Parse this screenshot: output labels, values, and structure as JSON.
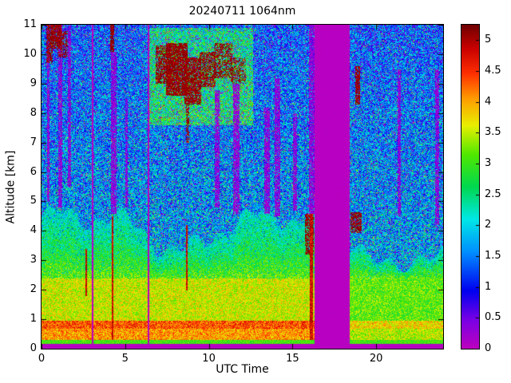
{
  "chart_data": {
    "type": "heatmap",
    "title": "20240711 1064nm",
    "xlabel": "UTC Time",
    "ylabel": "Altitude [km]",
    "x_range": [
      0,
      24
    ],
    "y_range": [
      0,
      11
    ],
    "x_ticks": [
      0,
      5,
      10,
      15,
      20
    ],
    "y_ticks": [
      0,
      1,
      2,
      3,
      4,
      5,
      6,
      7,
      8,
      9,
      10,
      11
    ],
    "grid": false,
    "legend": "colorbar-right",
    "colorbar": {
      "range": [
        0,
        5.25
      ],
      "ticks": [
        0,
        0.5,
        1,
        1.5,
        2,
        2.5,
        3,
        3.5,
        4,
        4.5,
        5
      ]
    },
    "colormap": [
      {
        "u": 0.0,
        "c": "#BE00BE"
      },
      {
        "u": 0.09,
        "c": "#7A00E6"
      },
      {
        "u": 0.18,
        "c": "#0000F0"
      },
      {
        "u": 0.3,
        "c": "#0090FF"
      },
      {
        "u": 0.4,
        "c": "#00E8E8"
      },
      {
        "u": 0.5,
        "c": "#00D850"
      },
      {
        "u": 0.6,
        "c": "#50E800"
      },
      {
        "u": 0.69,
        "c": "#E8F000"
      },
      {
        "u": 0.77,
        "c": "#FFA000"
      },
      {
        "u": 0.85,
        "c": "#FF3000"
      },
      {
        "u": 0.93,
        "c": "#C80000"
      },
      {
        "u": 1.0,
        "c": "#700000"
      }
    ],
    "seed": 42,
    "features": {
      "gaps": [
        {
          "t0": 2.96,
          "t1": 3.07
        },
        {
          "t0": 6.32,
          "t1": 6.44
        },
        {
          "t0": 16.28,
          "t1": 18.38
        }
      ],
      "clouds": [
        {
          "t0": 0.25,
          "t1": 0.65,
          "h0": 9.7,
          "h1": 11,
          "p": 0.75
        },
        {
          "t0": 0.55,
          "t1": 1.15,
          "h0": 10.2,
          "h1": 11,
          "p": 0.85
        },
        {
          "t0": 0.95,
          "t1": 1.55,
          "h0": 9.9,
          "h1": 10.8,
          "p": 0.55
        },
        {
          "t0": 4.1,
          "t1": 4.32,
          "h0": 10.1,
          "h1": 11,
          "p": 0.9
        },
        {
          "t0": 6.8,
          "t1": 7.7,
          "h0": 9.0,
          "h1": 10.3,
          "p": 0.7
        },
        {
          "t0": 7.4,
          "t1": 8.7,
          "h0": 8.6,
          "h1": 10.4,
          "p": 0.85
        },
        {
          "t0": 8.5,
          "t1": 9.5,
          "h0": 8.3,
          "h1": 9.9,
          "p": 0.8
        },
        {
          "t0": 8.62,
          "t1": 8.8,
          "h0": 7.0,
          "h1": 8.4,
          "p": 0.6
        },
        {
          "t0": 9.4,
          "t1": 10.4,
          "h0": 8.9,
          "h1": 10.1,
          "p": 0.65
        },
        {
          "t0": 10.3,
          "t1": 11.4,
          "h0": 9.2,
          "h1": 10.4,
          "p": 0.55
        },
        {
          "t0": 11.3,
          "t1": 12.2,
          "h0": 9.0,
          "h1": 9.9,
          "p": 0.45
        },
        {
          "t0": 15.7,
          "t1": 16.26,
          "h0": 3.2,
          "h1": 4.6,
          "p": 0.7
        },
        {
          "t0": 18.45,
          "t1": 19.1,
          "h0": 3.95,
          "h1": 4.65,
          "p": 0.75
        },
        {
          "t0": 18.75,
          "t1": 19.0,
          "h0": 8.3,
          "h1": 9.6,
          "p": 0.85
        }
      ],
      "purple_streaks": [
        {
          "t0": 0.3,
          "t1": 0.45,
          "h0": 5.0,
          "h1": 11
        },
        {
          "t0": 1.0,
          "t1": 1.2,
          "h0": 4.8,
          "h1": 11
        },
        {
          "t0": 1.55,
          "t1": 1.72,
          "h0": 5.5,
          "h1": 11
        },
        {
          "t0": 4.15,
          "t1": 4.45,
          "h0": 4.6,
          "h1": 10.1
        },
        {
          "t0": 5.0,
          "t1": 5.15,
          "h0": 4.8,
          "h1": 8.5
        },
        {
          "t0": 10.35,
          "t1": 10.6,
          "h0": 4.8,
          "h1": 8.8
        },
        {
          "t0": 11.45,
          "t1": 11.8,
          "h0": 4.6,
          "h1": 9.0
        },
        {
          "t0": 13.3,
          "t1": 13.6,
          "h0": 4.6,
          "h1": 8.2
        },
        {
          "t0": 13.9,
          "t1": 14.25,
          "h0": 4.5,
          "h1": 9.2
        },
        {
          "t0": 15.0,
          "t1": 15.25,
          "h0": 4.7,
          "h1": 8.0
        },
        {
          "t0": 15.95,
          "t1": 16.28,
          "h0": 4.6,
          "h1": 11
        },
        {
          "t0": 21.25,
          "t1": 21.45,
          "h0": 4.5,
          "h1": 9.5
        },
        {
          "t0": 23.5,
          "t1": 23.75,
          "h0": 4.2,
          "h1": 9.5
        }
      ],
      "red_columns": [
        {
          "t0": 4.17,
          "t1": 4.28,
          "h0": 0.3,
          "h1": 4.5
        },
        {
          "t0": 2.6,
          "t1": 2.68,
          "h0": 1.8,
          "h1": 3.4
        },
        {
          "t0": 8.62,
          "t1": 8.72,
          "h0": 2.0,
          "h1": 4.2
        },
        {
          "t0": 16.0,
          "t1": 16.2,
          "h0": 0.3,
          "h1": 4.6
        }
      ],
      "cloud_halo": {
        "t0": 6.3,
        "t1": 12.6,
        "h0": 7.6,
        "h1": 10.9
      }
    }
  }
}
